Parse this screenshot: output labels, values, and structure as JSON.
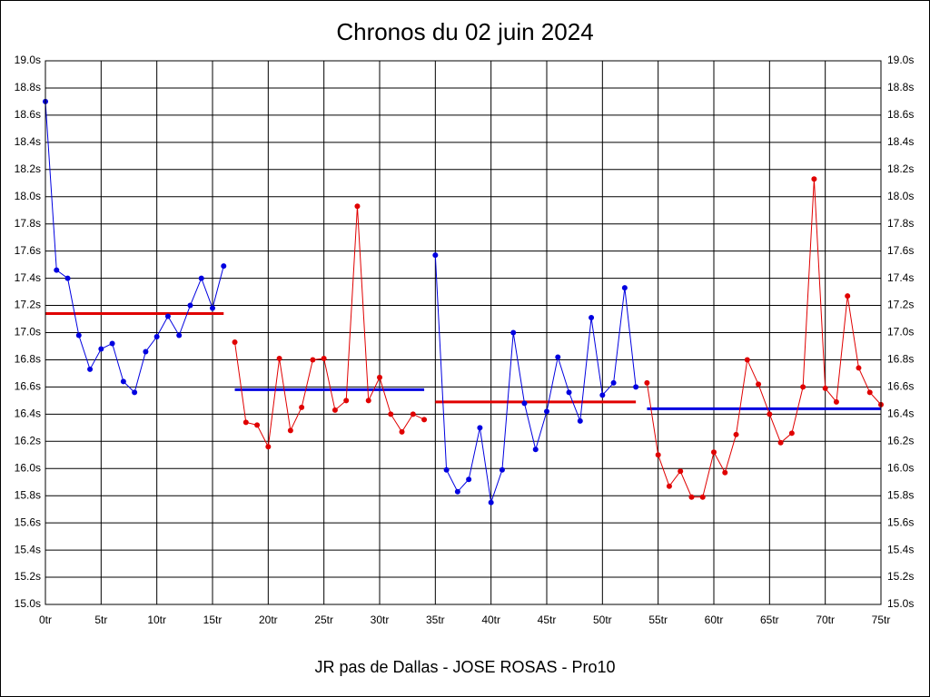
{
  "chart_data": {
    "type": "line",
    "title": "Chronos du 02 juin 2024",
    "footer": "JR pas de Dallas - JOSE ROSAS - Pro10",
    "xlim": [
      0,
      75
    ],
    "ylim": [
      15.0,
      19.0
    ],
    "xticks": [
      {
        "value": 0,
        "label": "0tr"
      },
      {
        "value": 5,
        "label": "5tr"
      },
      {
        "value": 10,
        "label": "10tr"
      },
      {
        "value": 15,
        "label": "15tr"
      },
      {
        "value": 20,
        "label": "20tr"
      },
      {
        "value": 25,
        "label": "25tr"
      },
      {
        "value": 30,
        "label": "30tr"
      },
      {
        "value": 35,
        "label": "35tr"
      },
      {
        "value": 40,
        "label": "40tr"
      },
      {
        "value": 45,
        "label": "45tr"
      },
      {
        "value": 50,
        "label": "50tr"
      },
      {
        "value": 55,
        "label": "55tr"
      },
      {
        "value": 60,
        "label": "60tr"
      },
      {
        "value": 65,
        "label": "65tr"
      },
      {
        "value": 70,
        "label": "70tr"
      },
      {
        "value": 75,
        "label": "75tr"
      }
    ],
    "yticks": [
      {
        "value": 15.0,
        "label": "15.0s"
      },
      {
        "value": 15.2,
        "label": "15.2s"
      },
      {
        "value": 15.4,
        "label": "15.4s"
      },
      {
        "value": 15.6,
        "label": "15.6s"
      },
      {
        "value": 15.8,
        "label": "15.8s"
      },
      {
        "value": 16.0,
        "label": "16.0s"
      },
      {
        "value": 16.2,
        "label": "16.2s"
      },
      {
        "value": 16.4,
        "label": "16.4s"
      },
      {
        "value": 16.6,
        "label": "16.6s"
      },
      {
        "value": 16.8,
        "label": "16.8s"
      },
      {
        "value": 17.0,
        "label": "17.0s"
      },
      {
        "value": 17.2,
        "label": "17.2s"
      },
      {
        "value": 17.4,
        "label": "17.4s"
      },
      {
        "value": 17.6,
        "label": "17.6s"
      },
      {
        "value": 17.8,
        "label": "17.8s"
      },
      {
        "value": 18.0,
        "label": "18.0s"
      },
      {
        "value": 18.2,
        "label": "18.2s"
      },
      {
        "value": 18.4,
        "label": "18.4s"
      },
      {
        "value": 18.6,
        "label": "18.6s"
      },
      {
        "value": 18.8,
        "label": "18.8s"
      },
      {
        "value": 19.0,
        "label": "19.0s"
      }
    ],
    "grid": true,
    "series": [
      {
        "color": "#0000e0",
        "average_color": "#e00000",
        "average": 17.14,
        "x": [
          0,
          1,
          2,
          3,
          4,
          5,
          6,
          7,
          8,
          9,
          10,
          11,
          12,
          13,
          14,
          15,
          16
        ],
        "values": [
          18.7,
          17.46,
          17.4,
          16.98,
          16.73,
          16.88,
          16.92,
          16.64,
          16.56,
          16.86,
          16.97,
          17.12,
          16.98,
          17.2,
          17.4,
          17.18,
          17.49
        ]
      },
      {
        "color": "#e00000",
        "average_color": "#0000e0",
        "average": 16.58,
        "x": [
          17,
          18,
          19,
          20,
          21,
          22,
          23,
          24,
          25,
          26,
          27,
          28,
          29,
          30,
          31,
          32,
          33,
          34
        ],
        "values": [
          16.93,
          16.34,
          16.32,
          16.16,
          16.81,
          16.28,
          16.45,
          16.8,
          16.81,
          16.43,
          16.5,
          17.93,
          16.5,
          16.67,
          16.4,
          16.27,
          16.4,
          16.36
        ]
      },
      {
        "color": "#0000e0",
        "average_color": "#e00000",
        "average": 16.49,
        "x": [
          35,
          36,
          37,
          38,
          39,
          40,
          41,
          42,
          43,
          44,
          45,
          46,
          47,
          48,
          49,
          50,
          51,
          52,
          53
        ],
        "values": [
          17.57,
          15.99,
          15.83,
          15.92,
          16.3,
          15.75,
          15.99,
          17.0,
          16.48,
          16.14,
          16.42,
          16.82,
          16.56,
          16.35,
          17.11,
          16.54,
          16.63,
          17.33,
          16.6
        ]
      },
      {
        "color": "#e00000",
        "average_color": "#0000e0",
        "average": 16.44,
        "x": [
          54,
          55,
          56,
          57,
          58,
          59,
          60,
          61,
          62,
          63,
          64,
          65,
          66,
          67,
          68,
          69,
          70,
          71,
          72,
          73,
          74,
          75
        ],
        "values": [
          16.63,
          16.1,
          15.87,
          15.98,
          15.79,
          15.79,
          16.12,
          15.97,
          16.25,
          16.8,
          16.62,
          16.4,
          16.19,
          16.26,
          16.6,
          18.13,
          16.59,
          16.49,
          17.27,
          16.74,
          16.56,
          16.47
        ]
      }
    ]
  }
}
